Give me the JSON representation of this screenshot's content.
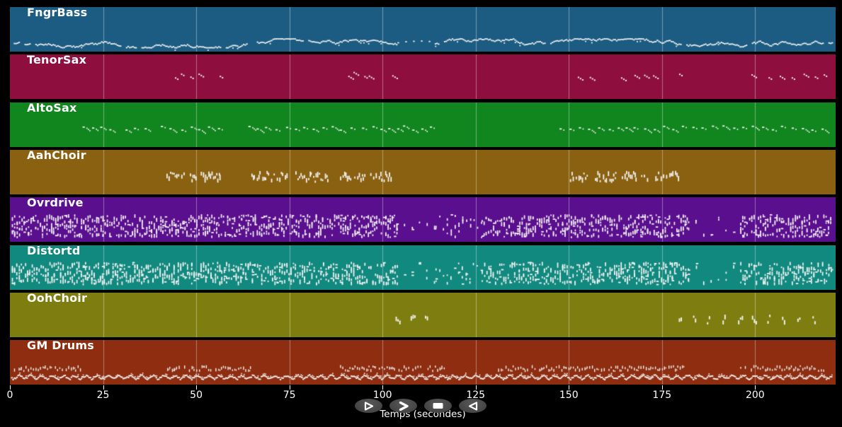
{
  "window": {
    "background": "#000000"
  },
  "chart_data": {
    "type": "midi-activity-timeline",
    "xlabel": "Temps (secondes)",
    "x_ticks": [
      0,
      25,
      50,
      75,
      100,
      125,
      150,
      175,
      200
    ],
    "x_range": [
      0,
      221.6
    ],
    "grid": true,
    "tracks": [
      {
        "id": "fngrbass",
        "label": "FngrBass",
        "color": "#1d5c82",
        "render": {
          "style": "wiggle",
          "y": 0.8,
          "amp": 0.1
        },
        "segments": [
          {
            "from": 1.0,
            "to": 104.0,
            "density": "dense"
          },
          {
            "from": 104.0,
            "to": 114.0,
            "density": "sparse"
          },
          {
            "from": 114.0,
            "to": 220.5,
            "density": "dense"
          }
        ]
      },
      {
        "id": "tenorsax",
        "label": "TenorSax",
        "color": "#8e0f3e",
        "render": {
          "style": "pairs",
          "y": 0.45
        },
        "clusters": [
          44.3,
          45.9,
          48.4,
          50.6,
          56.3,
          90.8,
          92.2,
          95.1,
          96.3,
          102.6,
          152.4,
          155.6,
          164.0,
          167.6,
          170.2,
          172.6,
          179.6,
          199.0,
          203.6,
          206.6,
          209.8,
          213.0,
          216.0,
          218.4
        ]
      },
      {
        "id": "altosax",
        "label": "AltoSax",
        "color": "#11861f",
        "render": {
          "style": "motif",
          "y": 0.56
        },
        "segments": [
          {
            "from": 19.5,
            "to": 29.0
          },
          {
            "from": 31.0,
            "to": 38.5
          },
          {
            "from": 40.5,
            "to": 44.5
          },
          {
            "from": 46.0,
            "to": 49.0
          },
          {
            "from": 50.5,
            "to": 56.0
          },
          {
            "from": 64.0,
            "to": 75.5
          },
          {
            "from": 76.5,
            "to": 93.5
          },
          {
            "from": 94.5,
            "to": 104.0
          },
          {
            "from": 105.5,
            "to": 114.5
          },
          {
            "from": 147.5,
            "to": 218.5
          }
        ]
      },
      {
        "id": "aahchoir",
        "label": "AahChoir",
        "color": "#8a6110",
        "render": {
          "style": "stack",
          "y_min": 0.47,
          "y_max": 0.74
        },
        "segments": [
          {
            "from": 42.0,
            "to": 47.0
          },
          {
            "from": 48.3,
            "to": 50.5
          },
          {
            "from": 51.2,
            "to": 56.3
          },
          {
            "from": 64.8,
            "to": 74.5
          },
          {
            "from": 76.6,
            "to": 85.3
          },
          {
            "from": 88.6,
            "to": 91.5
          },
          {
            "from": 92.4,
            "to": 94.9
          },
          {
            "from": 96.7,
            "to": 101.9
          },
          {
            "from": 150.3,
            "to": 155.0
          },
          {
            "from": 157.0,
            "to": 162.7
          },
          {
            "from": 164.2,
            "to": 168.4
          },
          {
            "from": 169.4,
            "to": 171.3
          },
          {
            "from": 173.2,
            "to": 179.5
          }
        ]
      },
      {
        "id": "ovrdrive",
        "label": "Ovrdrive",
        "color": "#5a0f8e",
        "render": {
          "style": "vstack",
          "y_min": 0.38,
          "y_max": 0.92
        },
        "segments": [
          {
            "from": 0.5,
            "to": 103.8,
            "density": "dense"
          },
          {
            "from": 103.8,
            "to": 114.2,
            "density": "sparse"
          },
          {
            "from": 114.2,
            "to": 126.6,
            "density": "med"
          },
          {
            "from": 126.6,
            "to": 182.0,
            "density": "dense"
          },
          {
            "from": 182.0,
            "to": 196.0,
            "density": "sparse"
          },
          {
            "from": 196.0,
            "to": 220.6,
            "density": "dense"
          }
        ]
      },
      {
        "id": "distortd",
        "label": "Distortd",
        "color": "#12897f",
        "render": {
          "style": "vstack",
          "y_min": 0.37,
          "y_max": 0.9
        },
        "segments": [
          {
            "from": 0.5,
            "to": 103.8,
            "density": "dense"
          },
          {
            "from": 103.8,
            "to": 114.2,
            "density": "sparse"
          },
          {
            "from": 114.2,
            "to": 126.6,
            "density": "med"
          },
          {
            "from": 126.6,
            "to": 182.0,
            "density": "dense"
          },
          {
            "from": 182.0,
            "to": 196.0,
            "density": "sparse"
          },
          {
            "from": 196.0,
            "to": 220.6,
            "density": "dense"
          }
        ]
      },
      {
        "id": "oohchoir",
        "label": "OohChoir",
        "color": "#7e7e10",
        "render": {
          "style": "ooh",
          "y_min": 0.49,
          "y_max": 0.72
        },
        "segments": [
          {
            "from": 103.5,
            "to": 113.5
          },
          {
            "from": 179.5,
            "to": 217.5
          }
        ]
      },
      {
        "id": "gmdrums",
        "label": "GM Drums",
        "color": "#8e2d10",
        "render": {
          "style": "drums",
          "ticks_y_min": 0.56,
          "ticks_y_max": 0.72,
          "wiggle_y": 0.82,
          "amp": 0.06
        },
        "segments_ticks": [
          {
            "from": 1.1,
            "to": 19.2
          },
          {
            "from": 42.2,
            "to": 64.8
          },
          {
            "from": 88.6,
            "to": 117.1
          },
          {
            "from": 130.4,
            "to": 180.8
          },
          {
            "from": 196.0,
            "to": 218.8
          }
        ],
        "segments_wiggle": [
          {
            "from": 0.3,
            "to": 220.5
          }
        ]
      }
    ]
  },
  "axis": {
    "label": "Temps (secondes)",
    "text_color": "#ffffff",
    "grid_color": "rgba(255,255,255,0.38)"
  },
  "transport": {
    "buttons": [
      {
        "id": "play",
        "icon": "play-icon"
      },
      {
        "id": "fast-forward",
        "icon": "fast-forward-icon"
      },
      {
        "id": "stop",
        "icon": "stop-icon"
      },
      {
        "id": "rewind",
        "icon": "rewind-icon"
      }
    ],
    "button_color": "#4a4a4a",
    "icon_color": "#ffffff"
  },
  "colors": {
    "note": "#f4f4f4"
  }
}
